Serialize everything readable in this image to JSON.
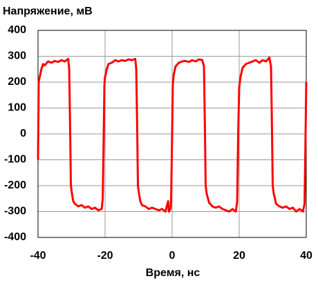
{
  "chart_data": {
    "type": "line",
    "title": "Напряжение, мВ",
    "x_label": "Время, нс",
    "color": "#ff0000",
    "grid": true,
    "xlim": [
      -40,
      40
    ],
    "xticks": [
      -40,
      -20,
      0,
      20,
      40
    ],
    "ylim": [
      -400,
      400
    ],
    "yticks": [
      -400,
      -300,
      -200,
      -100,
      0,
      100,
      200,
      300,
      400
    ],
    "x": [
      -40,
      -39.8,
      -39.5,
      -39,
      -38.5,
      -38,
      -37,
      -36,
      -35,
      -34,
      -33,
      -32,
      -31,
      -30.7,
      -30.4,
      -30.2,
      -30,
      -29.5,
      -29,
      -28,
      -27,
      -26,
      -25,
      -24,
      -23,
      -22,
      -21,
      -20.7,
      -20.4,
      -20.2,
      -20,
      -19.5,
      -19,
      -18,
      -17,
      -16,
      -15,
      -14,
      -13,
      -12,
      -11,
      -10.7,
      -10.4,
      -10.2,
      -10,
      -9.5,
      -9,
      -8,
      -7,
      -6,
      -5,
      -4,
      -3,
      -2,
      -1.2,
      -1,
      -0.5,
      -0.3,
      0,
      0.2,
      0.5,
      1,
      2,
      3,
      4,
      5,
      6,
      7,
      8,
      9,
      9.5,
      9.8,
      10,
      10.3,
      11,
      12,
      13,
      14,
      15,
      16,
      17,
      18,
      19,
      19.4,
      19.7,
      20,
      20.4,
      21,
      22,
      23,
      24,
      25,
      26,
      27,
      28,
      29,
      29.5,
      29.8,
      30,
      30.3,
      31,
      32,
      33,
      34,
      35,
      36,
      37,
      38,
      39,
      39.5,
      39.8,
      40
    ],
    "values": [
      -100,
      200,
      220,
      250,
      270,
      265,
      280,
      275,
      282,
      278,
      285,
      280,
      290,
      250,
      0,
      -200,
      -220,
      -260,
      -270,
      -280,
      -275,
      -285,
      -280,
      -290,
      -285,
      -295,
      -290,
      -250,
      0,
      190,
      220,
      250,
      270,
      275,
      285,
      280,
      285,
      282,
      288,
      285,
      290,
      250,
      0,
      -200,
      -220,
      -260,
      -275,
      -280,
      -290,
      -285,
      -290,
      -295,
      -290,
      -300,
      -260,
      -300,
      -290,
      -250,
      0,
      190,
      230,
      260,
      275,
      280,
      282,
      278,
      285,
      280,
      288,
      285,
      260,
      0,
      -200,
      -230,
      -265,
      -280,
      -285,
      -280,
      -290,
      -295,
      -300,
      -290,
      -300,
      -260,
      0,
      180,
      220,
      255,
      270,
      275,
      280,
      285,
      275,
      285,
      280,
      295,
      260,
      0,
      -200,
      -230,
      -270,
      -280,
      -285,
      -280,
      -290,
      -285,
      -300,
      -290,
      -300,
      -270,
      0,
      200
    ]
  }
}
